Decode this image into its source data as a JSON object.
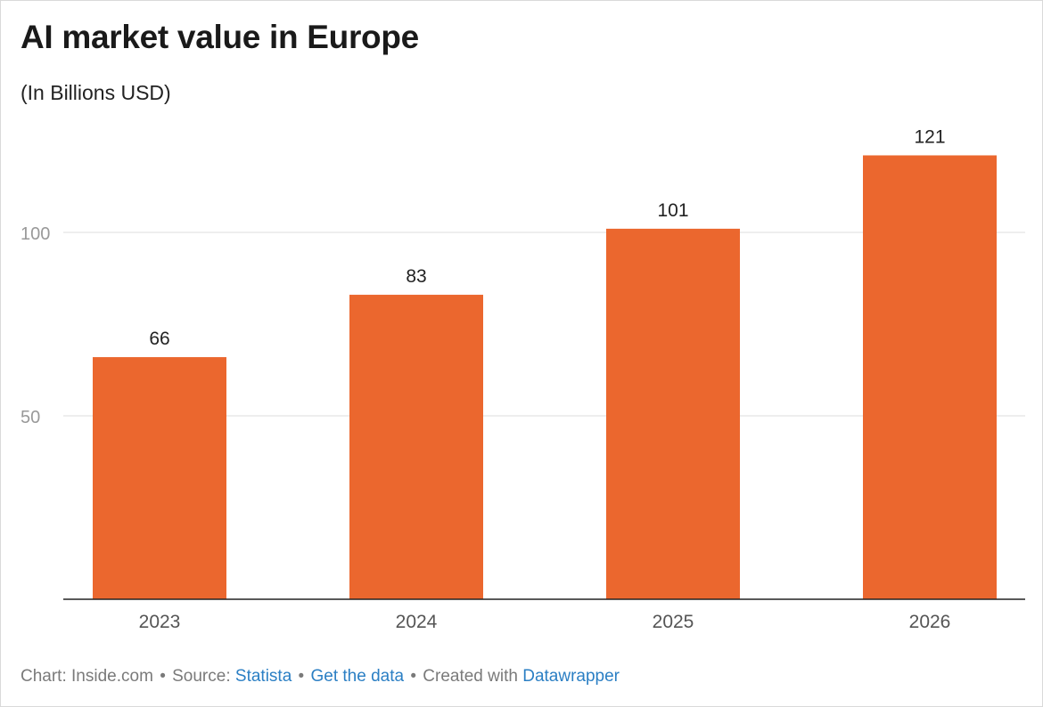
{
  "title": "AI market value in Europe",
  "subtitle": "(In Billions USD)",
  "footer": {
    "chart_prefix": "Chart: Inside.com",
    "source_prefix": "Source:",
    "source_link": "Statista",
    "get_data": "Get the data",
    "created_prefix": "Created with",
    "created_link": "Datawrapper",
    "separator": "•"
  },
  "colors": {
    "bar": "#EB672E",
    "grid": "#e3e3e3",
    "axis": "#222222",
    "tick_text": "#999999",
    "label_text": "#222222",
    "link": "#2b7fc4"
  },
  "chart_data": {
    "type": "bar",
    "title": "AI market value in Europe",
    "subtitle": "(In Billions USD)",
    "categories": [
      "2023",
      "2024",
      "2025",
      "2026"
    ],
    "values": [
      66,
      83,
      101,
      121
    ],
    "data_labels": [
      "66",
      "83",
      "101",
      "121"
    ],
    "ylim": [
      0,
      125
    ],
    "yticks": [
      50,
      100
    ],
    "ytick_labels": [
      "50",
      "100"
    ],
    "grid": true,
    "xlabel": "",
    "ylabel": ""
  }
}
